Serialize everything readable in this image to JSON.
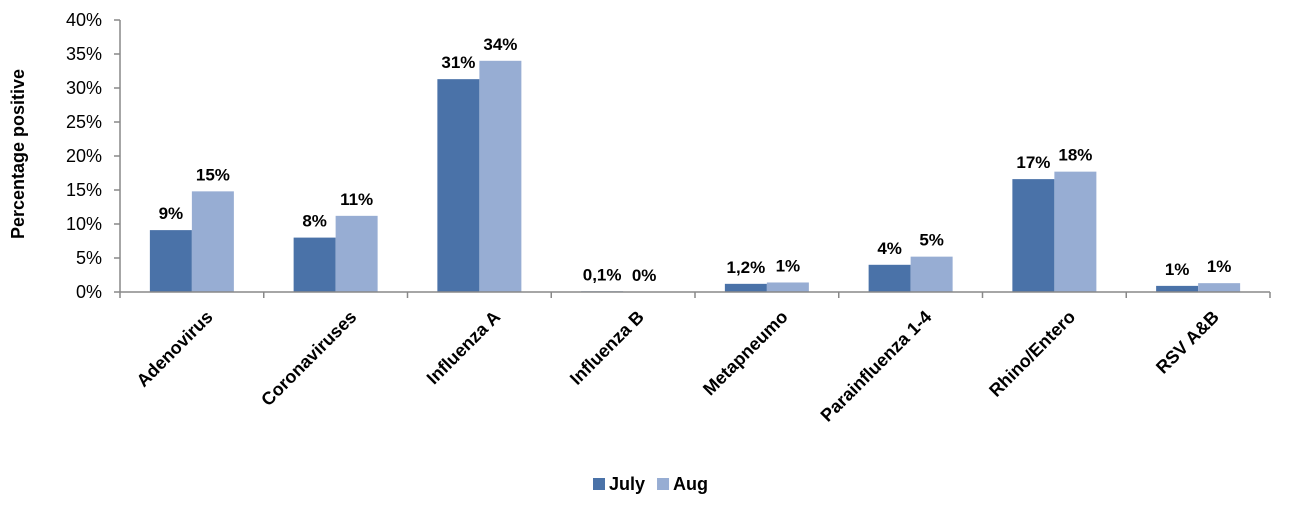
{
  "chart_data": {
    "type": "bar",
    "title": "",
    "xlabel": "",
    "ylabel": "Percentage positive",
    "ylim": [
      0,
      40
    ],
    "yticks": [
      "0%",
      "5%",
      "10%",
      "15%",
      "20%",
      "25%",
      "30%",
      "35%",
      "40%"
    ],
    "categories": [
      "Adenovirus",
      "Coronaviruses",
      "Influenza A",
      "Influenza B",
      "Metapneumo",
      "Parainfluenza 1-4",
      "Rhino/Entero",
      "RSV A&B"
    ],
    "series": [
      {
        "name": "July",
        "color": "#4A72A8",
        "values": [
          9.1,
          8.0,
          31.3,
          0.1,
          1.2,
          4.0,
          16.6,
          0.9
        ],
        "labels": [
          "9%",
          "8%",
          "31%",
          "0,1%",
          "1,2%",
          "4%",
          "17%",
          "1%"
        ]
      },
      {
        "name": "Aug",
        "color": "#97ADD3",
        "values": [
          14.8,
          11.2,
          34.0,
          0.0,
          1.4,
          5.2,
          17.7,
          1.3
        ],
        "labels": [
          "15%",
          "11%",
          "34%",
          "0%",
          "1%",
          "5%",
          "18%",
          "1%"
        ]
      }
    ],
    "grid": false,
    "legend": "bottom"
  }
}
